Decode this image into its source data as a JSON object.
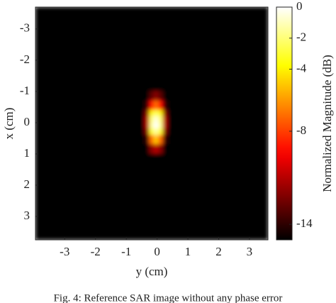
{
  "chart_data": {
    "type": "heatmap",
    "xlabel": "y (cm)",
    "ylabel": "x (cm)",
    "colorbar_label": "Normalized Magnitude (dB)",
    "caption": "Fig. 4: Reference SAR image without any phase error",
    "colormap": "hot",
    "xlim": [
      -3.95,
      3.6
    ],
    "xticks": [
      -3,
      -2,
      -1,
      0,
      1,
      2,
      3
    ],
    "ylim": [
      -3.7,
      3.75
    ],
    "yticks": [
      -3,
      -2,
      -1,
      0,
      1,
      2,
      3
    ],
    "yreverse": true,
    "clim": [
      -15,
      0
    ],
    "cticks": [
      0,
      -2,
      -4,
      -8,
      -14
    ],
    "xbins": [
      -3.95,
      -0.4,
      -0.25,
      -0.1,
      0.05,
      0.2,
      0.35,
      3.6
    ],
    "ybins": [
      -3.7,
      -1.0,
      -0.7,
      -0.4,
      -0.2,
      0,
      0.2,
      0.4,
      0.7,
      1.0,
      3.75
    ],
    "z": [
      [
        -15,
        -15,
        -15,
        -15,
        -15,
        -15,
        -15
      ],
      [
        -15,
        -15,
        -13,
        -12,
        -13,
        -15,
        -15
      ],
      [
        -15,
        -14,
        -9,
        -7,
        -9,
        -14,
        -15
      ],
      [
        -15,
        -12,
        -4,
        -2.5,
        -4,
        -12,
        -15
      ],
      [
        -15,
        -11,
        -2,
        -0.5,
        -2,
        -11,
        -15
      ],
      [
        -15,
        -11,
        -1.5,
        0,
        -1.5,
        -11,
        -15
      ],
      [
        -15,
        -12,
        -3,
        -1.5,
        -3,
        -12,
        -15
      ],
      [
        -15,
        -14,
        -7,
        -5,
        -7,
        -14,
        -15
      ],
      [
        -15,
        -15,
        -12,
        -11,
        -12,
        -15,
        -15
      ],
      [
        -15,
        -15,
        -15,
        -15,
        -15,
        -15,
        -15
      ]
    ]
  }
}
